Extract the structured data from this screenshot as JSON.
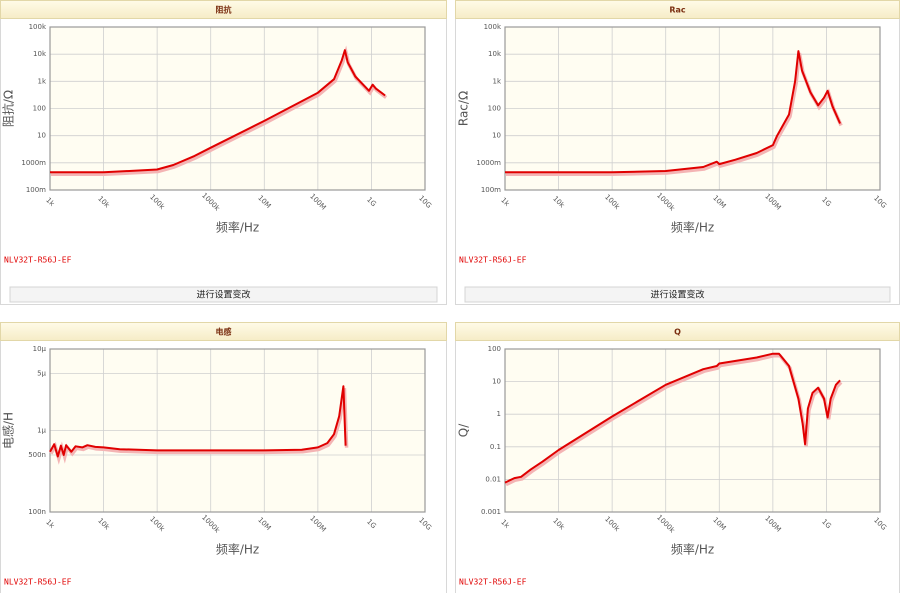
{
  "chart_data": [
    {
      "type": "line",
      "title": "阻抗",
      "ylabel": "阻抗/Ω",
      "xlabel": "频率/Hz",
      "part_number": "NLV32T-R56J-EF",
      "button": "进行设置变改",
      "xscale": "log",
      "yscale": "log",
      "grid": true,
      "color": "#e00000",
      "xlim": [
        1000,
        10000000000
      ],
      "xticks": [
        {
          "value": 1000,
          "label": "1k"
        },
        {
          "value": 10000,
          "label": "10k"
        },
        {
          "value": 100000,
          "label": "100k"
        },
        {
          "value": 1000000,
          "label": "1000k"
        },
        {
          "value": 10000000,
          "label": "10M"
        },
        {
          "value": 100000000,
          "label": "100M"
        },
        {
          "value": 1000000000,
          "label": "1G"
        },
        {
          "value": 10000000000,
          "label": "10G"
        }
      ],
      "ylim": [
        0.1,
        100000
      ],
      "yticks": [
        {
          "value": 0.1,
          "label": "100m"
        },
        {
          "value": 1,
          "label": "1000m"
        },
        10,
        100,
        {
          "value": 1000,
          "label": "1k"
        },
        {
          "value": 10000,
          "label": "10k"
        },
        {
          "value": 100000,
          "label": "100k"
        }
      ],
      "x": [
        1000,
        10000,
        100000,
        200000,
        500000,
        1000000,
        10000000,
        100000000,
        200000000,
        280000000,
        320000000,
        360000000,
        500000000,
        900000000,
        1050000000,
        1200000000,
        1800000000
      ],
      "values": [
        0.45,
        0.45,
        0.57,
        0.83,
        1.8,
        3.6,
        35,
        380,
        1200,
        6000,
        14000,
        5000,
        1500,
        450,
        750,
        550,
        300
      ]
    },
    {
      "type": "line",
      "title": "Rac",
      "ylabel": "Rac/Ω",
      "xlabel": "频率/Hz",
      "part_number": "NLV32T-R56J-EF",
      "button": "进行设置变改",
      "xscale": "log",
      "yscale": "log",
      "grid": true,
      "color": "#e00000",
      "xlim": [
        1000,
        10000000000
      ],
      "xticks": [
        {
          "value": 1000,
          "label": "1k"
        },
        {
          "value": 10000,
          "label": "10k"
        },
        {
          "value": 100000,
          "label": "100k"
        },
        {
          "value": 1000000,
          "label": "1000k"
        },
        {
          "value": 10000000,
          "label": "10M"
        },
        {
          "value": 100000000,
          "label": "100M"
        },
        {
          "value": 1000000000,
          "label": "1G"
        },
        {
          "value": 10000000000,
          "label": "10G"
        }
      ],
      "ylim": [
        0.1,
        100000
      ],
      "yticks": [
        {
          "value": 0.1,
          "label": "100m"
        },
        {
          "value": 1,
          "label": "1000m"
        },
        10,
        100,
        {
          "value": 1000,
          "label": "1k"
        },
        {
          "value": 10000,
          "label": "10k"
        },
        {
          "value": 100000,
          "label": "100k"
        }
      ],
      "x": [
        1000,
        100000,
        1000000,
        5000000,
        9000000,
        10000000,
        20000000,
        50000000,
        100000000,
        120000000,
        200000000,
        260000000,
        300000000,
        350000000,
        500000000,
        700000000,
        900000000,
        1050000000,
        1300000000,
        1800000000
      ],
      "values": [
        0.45,
        0.45,
        0.5,
        0.7,
        1.1,
        0.9,
        1.3,
        2.3,
        4.5,
        10,
        60,
        1000,
        13000,
        2500,
        400,
        130,
        250,
        450,
        120,
        28
      ]
    },
    {
      "type": "line",
      "title": "电感",
      "ylabel": "电感/H",
      "xlabel": "频率/Hz",
      "part_number": "NLV32T-R56J-EF",
      "xscale": "log",
      "yscale": "log",
      "grid": true,
      "color": "#e00000",
      "xlim": [
        1000,
        10000000000
      ],
      "xticks": [
        {
          "value": 1000,
          "label": "1k"
        },
        {
          "value": 10000,
          "label": "10k"
        },
        {
          "value": 100000,
          "label": "100k"
        },
        {
          "value": 1000000,
          "label": "1000k"
        },
        {
          "value": 10000000,
          "label": "10M"
        },
        {
          "value": 100000000,
          "label": "100M"
        },
        {
          "value": 1000000000,
          "label": "1G"
        },
        {
          "value": 10000000000,
          "label": "10G"
        }
      ],
      "ylim": [
        1e-07,
        1e-05
      ],
      "yticks": [
        {
          "value": 1e-07,
          "label": "100n"
        },
        {
          "value": 5e-07,
          "label": "500n"
        },
        {
          "value": 1e-06,
          "label": "1μ"
        },
        {
          "value": 5e-06,
          "label": "5μ"
        },
        {
          "value": 1e-05,
          "label": "10μ"
        }
      ],
      "x": [
        1000,
        1200,
        1400,
        1600,
        1800,
        2000,
        2500,
        3000,
        4000,
        5000,
        7000,
        10000,
        20000,
        100000,
        1000000,
        10000000,
        50000000,
        100000000,
        150000000,
        200000000,
        250000000,
        300000000,
        330000000
      ],
      "values": [
        5.5e-07,
        6.8e-07,
        4.8e-07,
        6.5e-07,
        5e-07,
        6.6e-07,
        5.5e-07,
        6.4e-07,
        6.2e-07,
        6.6e-07,
        6.3e-07,
        6.2e-07,
        5.9e-07,
        5.7e-07,
        5.7e-07,
        5.7e-07,
        5.8e-07,
        6.2e-07,
        7e-07,
        9e-07,
        1.5e-06,
        3.5e-06,
        6.5e-07
      ]
    },
    {
      "type": "line",
      "title": "Q",
      "ylabel": "Q/",
      "xlabel": "频率/Hz",
      "part_number": "NLV32T-R56J-EF",
      "xscale": "log",
      "yscale": "log",
      "grid": true,
      "color": "#e00000",
      "xlim": [
        1000,
        10000000000
      ],
      "xticks": [
        {
          "value": 1000,
          "label": "1k"
        },
        {
          "value": 10000,
          "label": "10k"
        },
        {
          "value": 100000,
          "label": "100k"
        },
        {
          "value": 1000000,
          "label": "1000k"
        },
        {
          "value": 10000000,
          "label": "10M"
        },
        {
          "value": 100000000,
          "label": "100M"
        },
        {
          "value": 1000000000,
          "label": "1G"
        },
        {
          "value": 10000000000,
          "label": "10G"
        }
      ],
      "ylim": [
        0.001,
        100
      ],
      "yticks": [
        0.001,
        0.01,
        0.1,
        1,
        10,
        100
      ],
      "x": [
        1000,
        1500,
        2000,
        3000,
        5000,
        10000,
        100000,
        1000000,
        5000000,
        9000000,
        10000000,
        50000000,
        100000000,
        130000000,
        200000000,
        300000000,
        360000000,
        400000000,
        450000000,
        550000000,
        700000000,
        900000000,
        1050000000,
        1200000000,
        1500000000,
        1800000000
      ],
      "values": [
        0.008,
        0.011,
        0.012,
        0.02,
        0.035,
        0.08,
        0.85,
        8,
        24,
        30,
        36,
        55,
        72,
        72,
        30,
        3,
        0.5,
        0.12,
        1.5,
        4.5,
        6.5,
        3,
        0.8,
        3,
        8,
        11
      ]
    }
  ]
}
